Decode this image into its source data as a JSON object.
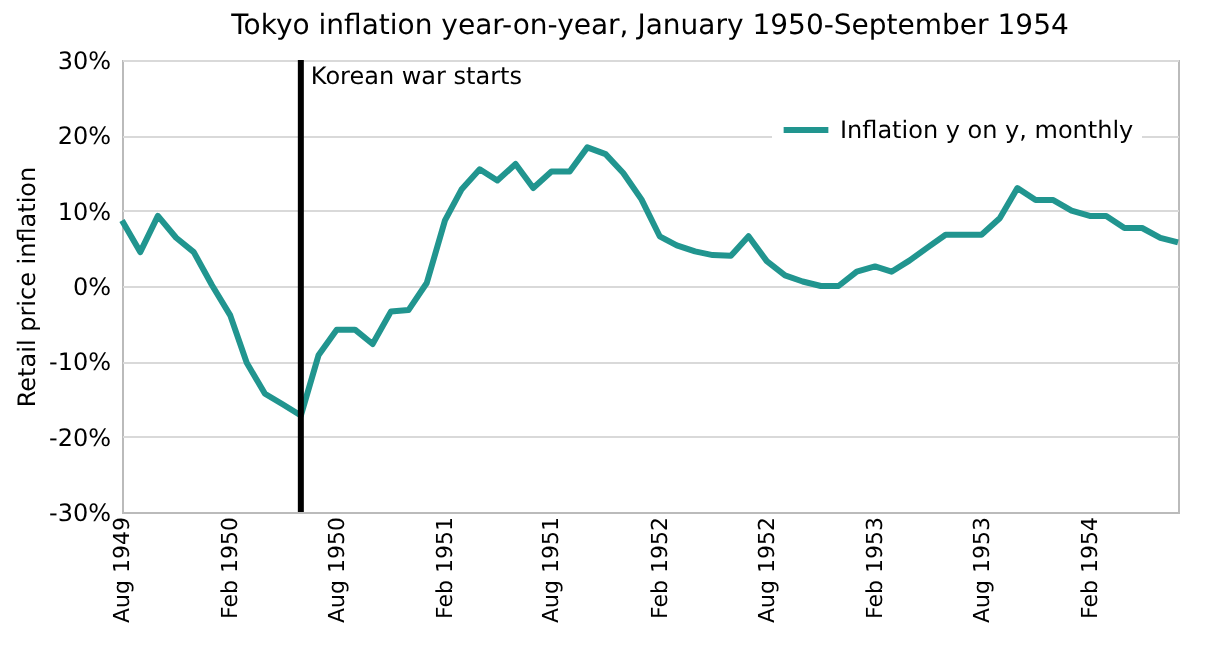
{
  "chart_data": {
    "type": "line",
    "title": "Tokyo inflation year-on-year, January 1950-September 1954",
    "ylabel": "Retail price inflation",
    "x": [
      "1949-08",
      "1949-09",
      "1949-10",
      "1949-11",
      "1949-12",
      "1950-01",
      "1950-02",
      "1950-03",
      "1950-04",
      "1950-05",
      "1950-06",
      "1950-07",
      "1950-08",
      "1950-09",
      "1950-10",
      "1950-11",
      "1950-12",
      "1951-01",
      "1951-02",
      "1951-03",
      "1951-04",
      "1951-05",
      "1951-06",
      "1951-07",
      "1951-08",
      "1951-09",
      "1951-10",
      "1951-11",
      "1951-12",
      "1952-01",
      "1952-02",
      "1952-03",
      "1952-04",
      "1952-05",
      "1952-06",
      "1952-07",
      "1952-08",
      "1952-09",
      "1952-10",
      "1952-11",
      "1952-12",
      "1953-01",
      "1953-02",
      "1953-03",
      "1953-04",
      "1953-05",
      "1953-06",
      "1953-07",
      "1953-08",
      "1953-09",
      "1953-10",
      "1953-11",
      "1953-12",
      "1954-01",
      "1954-02",
      "1954-03",
      "1954-04",
      "1954-05",
      "1954-06",
      "1954-07"
    ],
    "series": [
      {
        "name": "Inflation y on y, monthly",
        "color": "#21958f",
        "values": [
          8.7,
          4.5,
          9.3,
          6.4,
          4.5,
          0.1,
          -3.9,
          -10.2,
          -14.3,
          -15.7,
          -17.2,
          -9.2,
          -5.8,
          -5.8,
          -7.7,
          -3.4,
          -3.2,
          0.4,
          8.7,
          12.8,
          15.5,
          14.0,
          16.2,
          13.0,
          15.2,
          15.2,
          18.4,
          17.5,
          15.0,
          11.5,
          6.6,
          5.4,
          4.6,
          4.1,
          4.0,
          6.6,
          3.3,
          1.4,
          0.6,
          0,
          0,
          1.9,
          2.6,
          1.9,
          3.4,
          5.1,
          6.8,
          6.8,
          6.8,
          9.0,
          13.0,
          11.4,
          11.4,
          10.0,
          9.3,
          9.3,
          7.7,
          7.7,
          6.4,
          5.8
        ]
      }
    ],
    "xlim": [
      "1949-08",
      "1954-07"
    ],
    "xticks": [
      {
        "value": "1949-08",
        "label": "Aug 1949"
      },
      {
        "value": "1950-02",
        "label": "Feb 1950"
      },
      {
        "value": "1950-08",
        "label": "Aug 1950"
      },
      {
        "value": "1951-02",
        "label": "Feb 1951"
      },
      {
        "value": "1951-08",
        "label": "Aug 1951"
      },
      {
        "value": "1952-02",
        "label": "Feb 1952"
      },
      {
        "value": "1952-08",
        "label": "Aug 1952"
      },
      {
        "value": "1953-02",
        "label": "Feb 1953"
      },
      {
        "value": "1953-08",
        "label": "Aug 1953"
      },
      {
        "value": "1954-02",
        "label": "Feb 1954"
      }
    ],
    "ylim": [
      -30,
      30
    ],
    "yticks": [
      {
        "value": -30,
        "label": "-30%"
      },
      {
        "value": -20,
        "label": "-20%"
      },
      {
        "value": -10,
        "label": "-10%"
      },
      {
        "value": 0,
        "label": "0%"
      },
      {
        "value": 10,
        "label": "10%"
      },
      {
        "value": 20,
        "label": "20%"
      },
      {
        "value": 30,
        "label": "30%"
      }
    ],
    "ref_lines": [
      {
        "axis": "x",
        "value": "1950-06",
        "label": "Korean war starts",
        "color": "#000000"
      }
    ],
    "grid": "y",
    "legend": "top right",
    "marker": "none",
    "line_style": "solid"
  }
}
